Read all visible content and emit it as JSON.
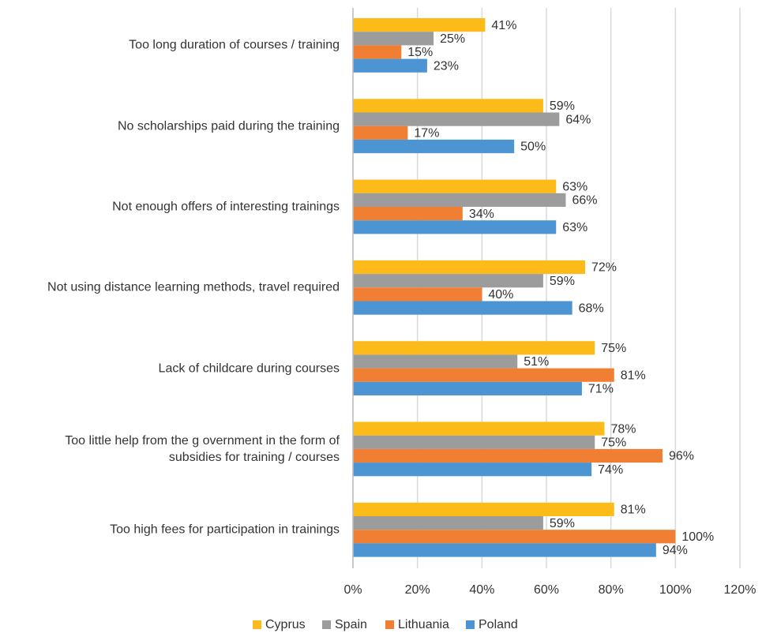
{
  "chart_data": {
    "type": "bar",
    "orientation": "horizontal",
    "categories": [
      "Too long duration of  courses / training",
      "No scholarships paid during the training",
      "Not enough offers of interesting trainings",
      "Not using distance learning methods, travel required",
      "Lack of childcare during courses",
      "Too little help from the g overnment in the form of\nsubsidies for training / courses",
      "Too high fees for participation in trainings"
    ],
    "series": [
      {
        "name": "Cyprus",
        "color": "#fdbb19",
        "values": [
          41,
          59,
          63,
          72,
          75,
          78,
          81
        ],
        "value_labels": [
          "41%",
          "59%",
          "63%",
          "72%",
          "75%",
          "78%",
          "81%"
        ]
      },
      {
        "name": "Spain",
        "color": "#9c9c9c",
        "values": [
          25,
          64,
          66,
          59,
          51,
          75,
          59
        ],
        "value_labels": [
          "25%",
          "64%",
          "66%",
          "59%",
          "51%",
          "75%",
          "59%"
        ]
      },
      {
        "name": "Lithuania",
        "color": "#f07f33",
        "values": [
          15,
          17,
          34,
          40,
          81,
          96,
          100
        ],
        "value_labels": [
          "15%",
          "17%",
          "34%",
          "40%",
          "81%",
          "96%",
          "100%"
        ]
      },
      {
        "name": "Poland",
        "color": "#4d94d3",
        "values": [
          23,
          50,
          63,
          68,
          71,
          74,
          94
        ],
        "value_labels": [
          "23%",
          "50%",
          "63%",
          "68%",
          "71%",
          "74%",
          "94%"
        ]
      }
    ],
    "xlim": [
      0,
      120
    ],
    "xticks": [
      {
        "value": 0,
        "label": "0%"
      },
      {
        "value": 20,
        "label": "20%"
      },
      {
        "value": 40,
        "label": "40%"
      },
      {
        "value": 60,
        "label": "60%"
      },
      {
        "value": 80,
        "label": "80%"
      },
      {
        "value": 100,
        "label": "100%"
      },
      {
        "value": 120,
        "label": "120%"
      }
    ],
    "grid": true,
    "legend": "bottom"
  }
}
